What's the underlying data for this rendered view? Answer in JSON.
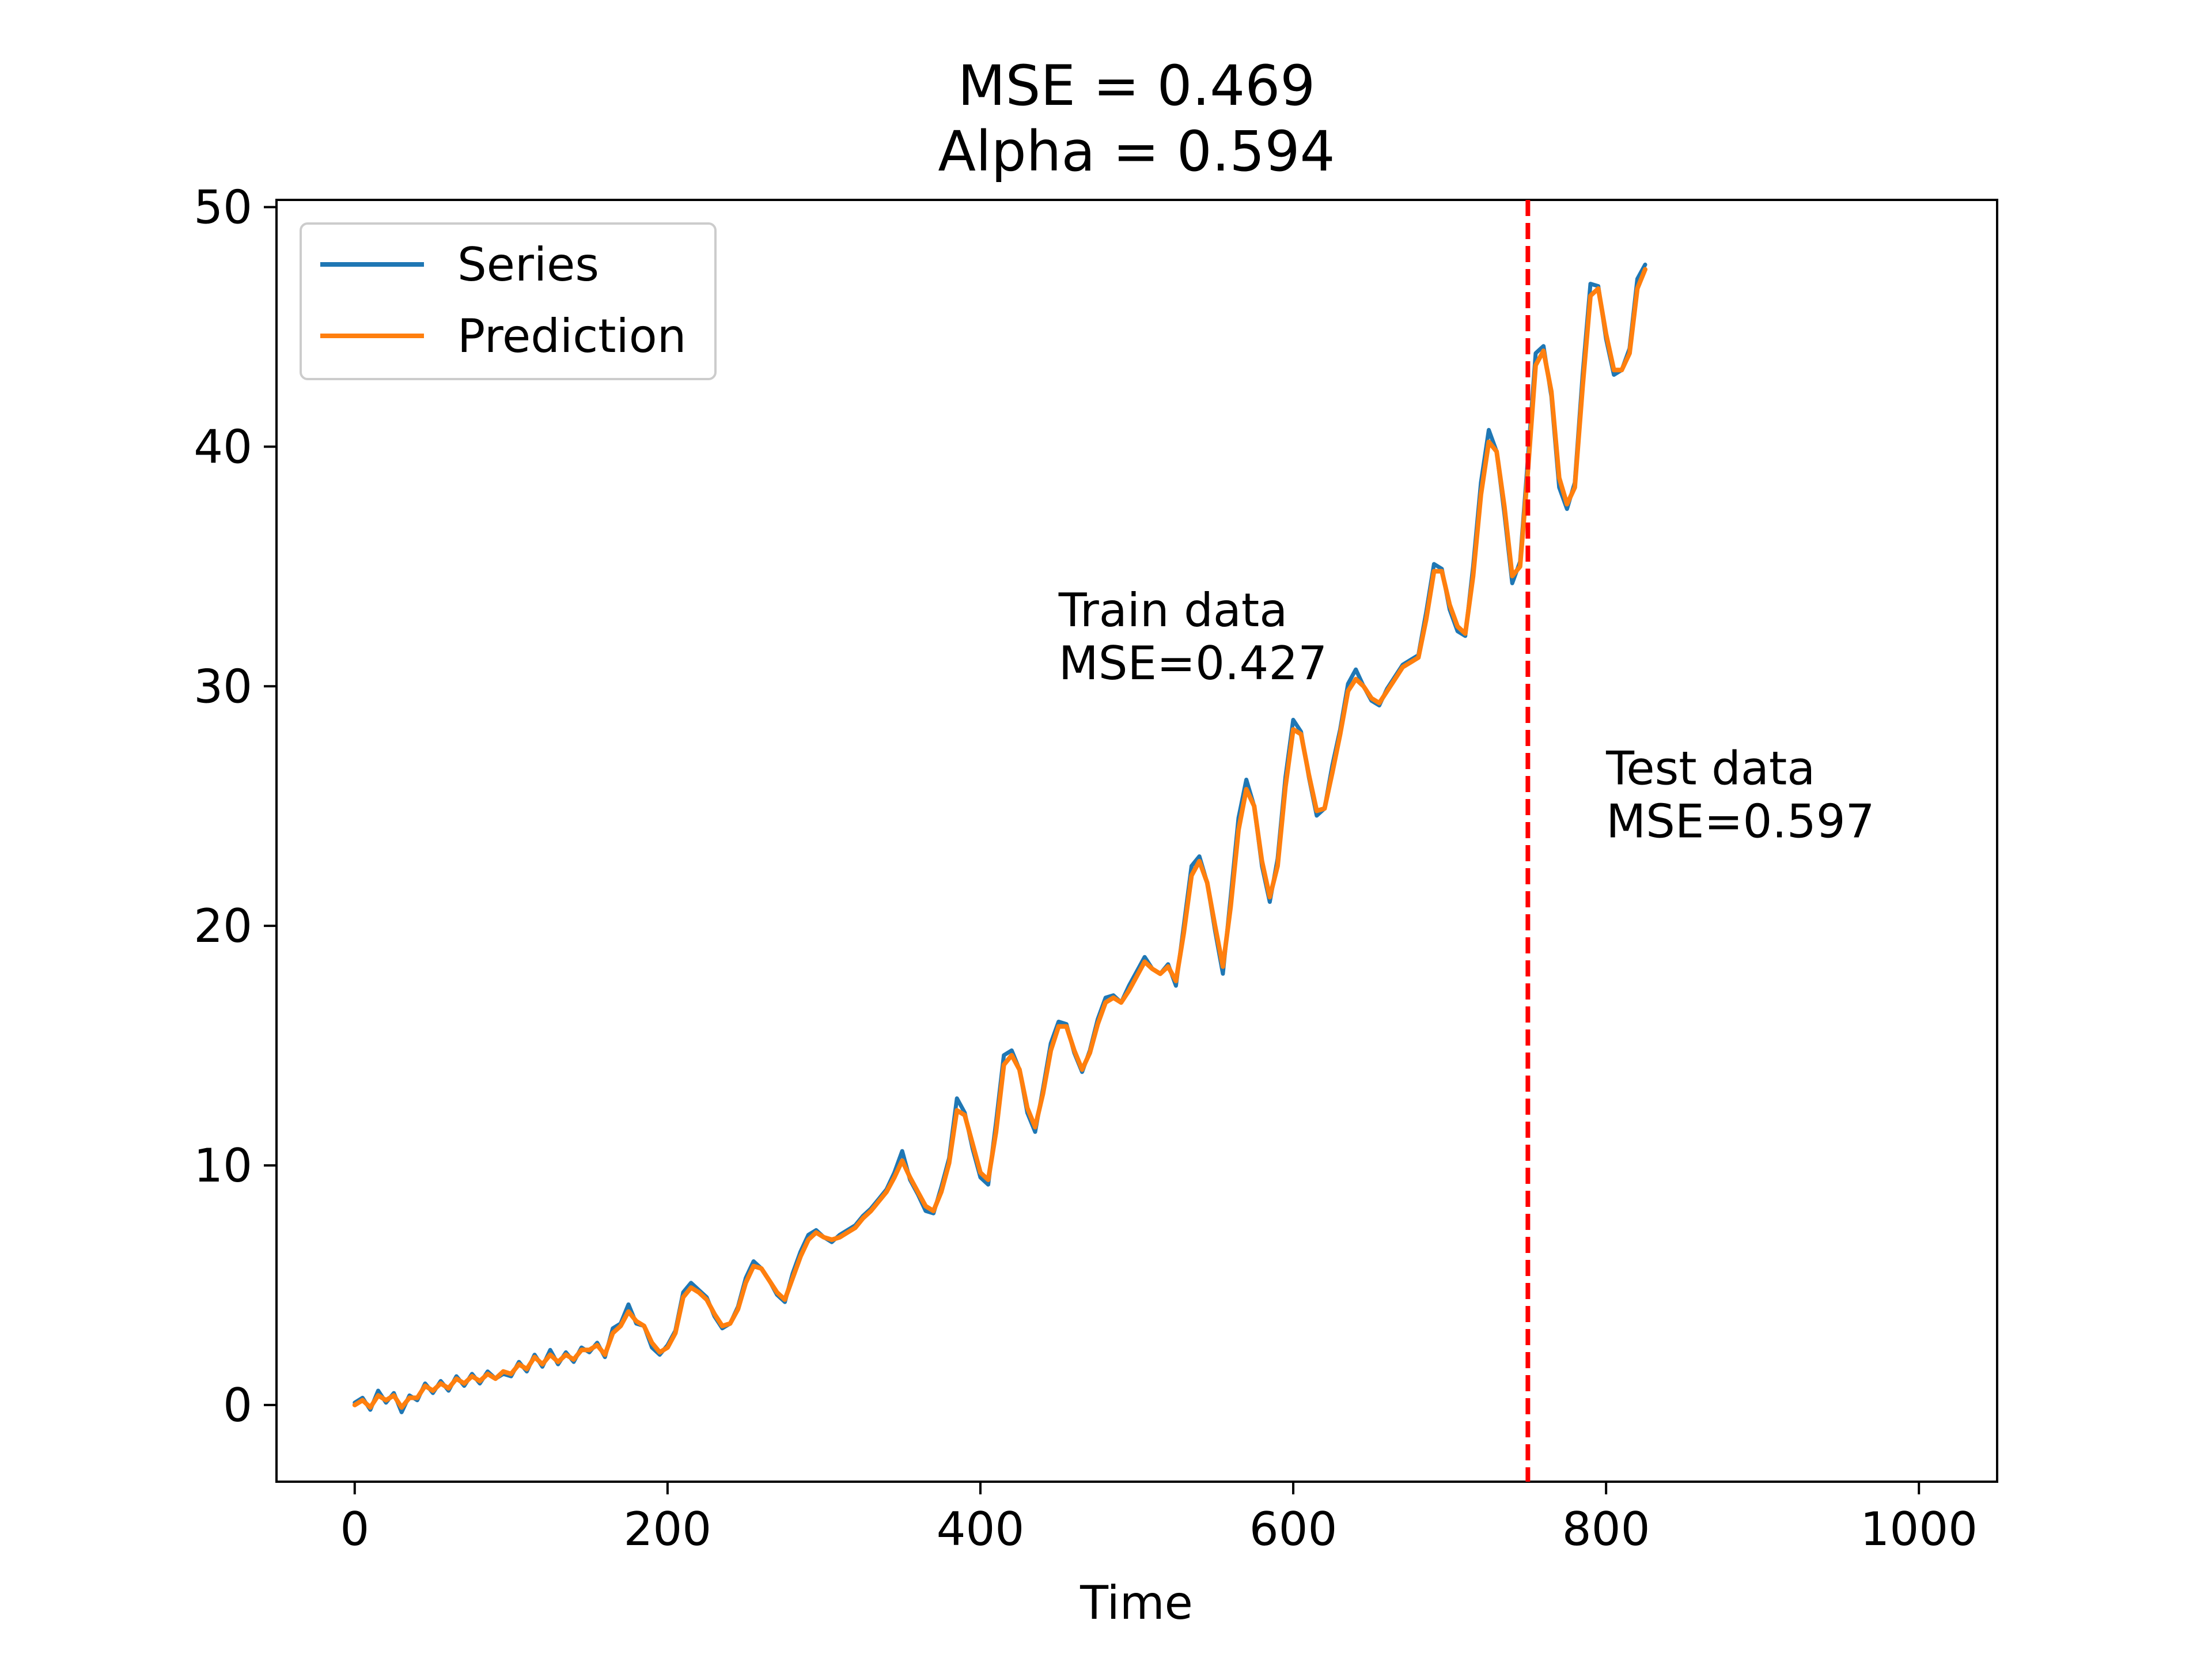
{
  "chart_data": {
    "type": "line",
    "title": [
      "MSE = 0.469",
      "Alpha = 0.594"
    ],
    "xlabel": "Time",
    "ylabel": "",
    "xlim": [
      -50,
      1050
    ],
    "ylim": [
      -3.2,
      50.3
    ],
    "xticks": [
      0,
      200,
      400,
      600,
      800,
      1000
    ],
    "yticks": [
      0,
      10,
      20,
      30,
      40,
      50
    ],
    "grid": false,
    "legend": {
      "placement": "upper-left",
      "entries": [
        "Series",
        "Prediction"
      ]
    },
    "split": {
      "x": 750,
      "color": "#ff0000",
      "style": "dashed"
    },
    "annotations": [
      {
        "name": "train",
        "lines": [
          "Train data",
          "MSE=0.427"
        ],
        "x": 450,
        "y": 30.2
      },
      {
        "name": "test",
        "lines": [
          "Test data",
          "MSE=0.597"
        ],
        "x": 800,
        "y": 23.6
      }
    ],
    "x_step": 5,
    "series": [
      {
        "name": "Series",
        "color": "#1f77b4",
        "values": [
          0.1,
          0.3,
          -0.2,
          0.6,
          0.1,
          0.5,
          -0.3,
          0.4,
          0.2,
          0.9,
          0.5,
          1.0,
          0.6,
          1.2,
          0.8,
          1.3,
          0.9,
          1.4,
          1.1,
          1.3,
          1.2,
          1.8,
          1.4,
          2.1,
          1.6,
          2.3,
          1.7,
          2.2,
          1.8,
          2.4,
          2.2,
          2.6,
          2.0,
          3.2,
          3.4,
          4.2,
          3.4,
          3.3,
          2.4,
          2.1,
          2.5,
          3.1,
          4.7,
          5.1,
          4.8,
          4.5,
          3.7,
          3.2,
          3.4,
          4.1,
          5.3,
          6.0,
          5.7,
          5.2,
          4.6,
          4.3,
          5.5,
          6.4,
          7.1,
          7.3,
          7.0,
          6.8,
          7.1,
          7.3,
          7.5,
          7.9,
          8.2,
          8.6,
          9.0,
          9.7,
          10.6,
          9.4,
          8.8,
          8.1,
          8.0,
          9.1,
          10.3,
          12.8,
          12.2,
          10.7,
          9.5,
          9.2,
          11.8,
          14.6,
          14.8,
          14.0,
          12.2,
          11.4,
          13.2,
          15.1,
          16.0,
          15.9,
          14.7,
          13.9,
          14.8,
          16.1,
          17.0,
          17.1,
          16.8,
          17.5,
          18.1,
          18.7,
          18.2,
          18.0,
          18.4,
          17.5,
          20.0,
          22.5,
          22.9,
          21.8,
          19.8,
          18.0,
          21.2,
          24.5,
          26.1,
          25.0,
          22.5,
          21.0,
          22.8,
          26.2,
          28.6,
          28.1,
          26.2,
          24.6,
          24.9,
          26.7,
          28.2,
          30.1,
          30.7,
          30.0,
          29.4,
          29.2,
          29.9,
          30.4,
          30.9,
          31.1,
          31.3,
          33.1,
          35.1,
          34.9,
          33.2,
          32.3,
          32.1,
          35.0,
          38.5,
          40.7,
          39.8,
          37.2,
          34.3,
          35.2,
          39.5,
          43.9,
          44.2,
          42.1,
          38.3,
          37.4,
          38.5,
          43.0,
          46.8,
          46.7,
          44.5,
          43.0,
          43.2,
          44.1,
          47.0,
          47.6
        ]
      },
      {
        "name": "Prediction",
        "color": "#ff7f0e",
        "values": [
          0.0,
          0.2,
          -0.1,
          0.4,
          0.2,
          0.4,
          -0.1,
          0.3,
          0.3,
          0.8,
          0.6,
          0.9,
          0.7,
          1.1,
          0.9,
          1.2,
          1.0,
          1.3,
          1.1,
          1.4,
          1.3,
          1.7,
          1.5,
          2.0,
          1.7,
          2.1,
          1.8,
          2.1,
          1.9,
          2.3,
          2.3,
          2.5,
          2.1,
          3.0,
          3.3,
          3.9,
          3.5,
          3.3,
          2.6,
          2.2,
          2.4,
          3.0,
          4.5,
          4.9,
          4.7,
          4.4,
          3.8,
          3.3,
          3.4,
          4.0,
          5.1,
          5.8,
          5.7,
          5.2,
          4.7,
          4.4,
          5.3,
          6.2,
          6.9,
          7.2,
          7.0,
          6.9,
          7.0,
          7.2,
          7.4,
          7.8,
          8.1,
          8.5,
          8.9,
          9.5,
          10.2,
          9.5,
          8.9,
          8.3,
          8.1,
          8.9,
          10.1,
          12.3,
          12.1,
          10.9,
          9.7,
          9.4,
          11.4,
          14.2,
          14.6,
          14.0,
          12.4,
          11.6,
          13.0,
          14.8,
          15.8,
          15.8,
          14.8,
          14.0,
          14.7,
          15.9,
          16.8,
          17.0,
          16.8,
          17.3,
          17.9,
          18.5,
          18.2,
          18.0,
          18.3,
          17.7,
          19.7,
          22.1,
          22.7,
          21.8,
          20.0,
          18.3,
          20.8,
          24.0,
          25.7,
          25.0,
          22.7,
          21.2,
          22.5,
          25.8,
          28.2,
          28.0,
          26.3,
          24.8,
          24.9,
          26.4,
          28.0,
          29.8,
          30.3,
          30.0,
          29.5,
          29.3,
          29.8,
          30.3,
          30.8,
          31.0,
          31.2,
          32.8,
          34.8,
          34.8,
          33.4,
          32.5,
          32.2,
          34.6,
          38.0,
          40.2,
          39.8,
          37.5,
          34.6,
          35.0,
          39.0,
          43.4,
          44.0,
          42.3,
          38.7,
          37.6,
          38.3,
          42.5,
          46.3,
          46.6,
          44.7,
          43.2,
          43.2,
          43.9,
          46.6,
          47.4
        ]
      }
    ]
  }
}
